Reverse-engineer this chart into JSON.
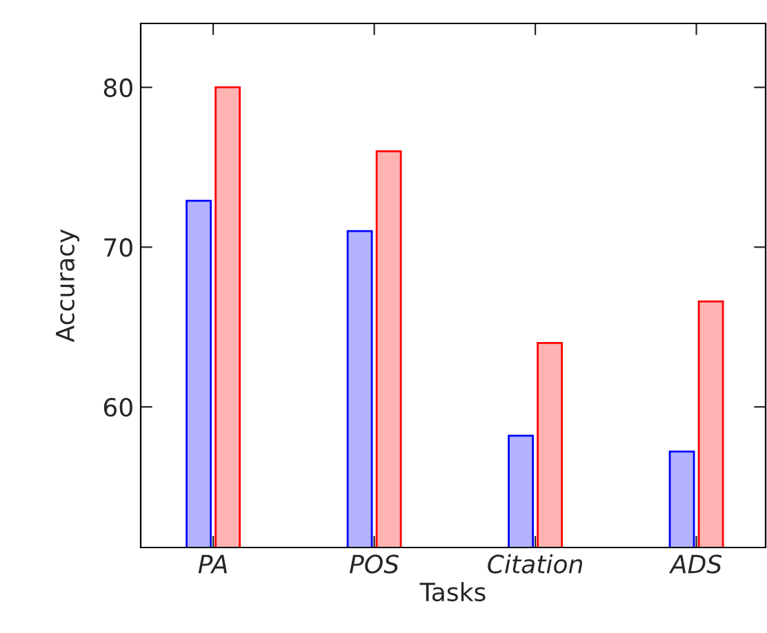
{
  "chart_data": {
    "type": "bar",
    "xlabel": "Tasks",
    "ylabel": "Accuracy",
    "categories": [
      "PA",
      "POS",
      "Citation",
      "ADS"
    ],
    "series": [
      {
        "color": "#b3b3ff",
        "values": [
          72.9,
          71.0,
          58.2,
          57.2
        ]
      },
      {
        "color": "#ffb3b3",
        "values": [
          80.0,
          76.0,
          64.0,
          66.6
        ]
      }
    ],
    "ylim": [
      51.2,
      84
    ],
    "yticks": [
      60,
      70,
      80
    ],
    "grid": false,
    "legend": false
  }
}
